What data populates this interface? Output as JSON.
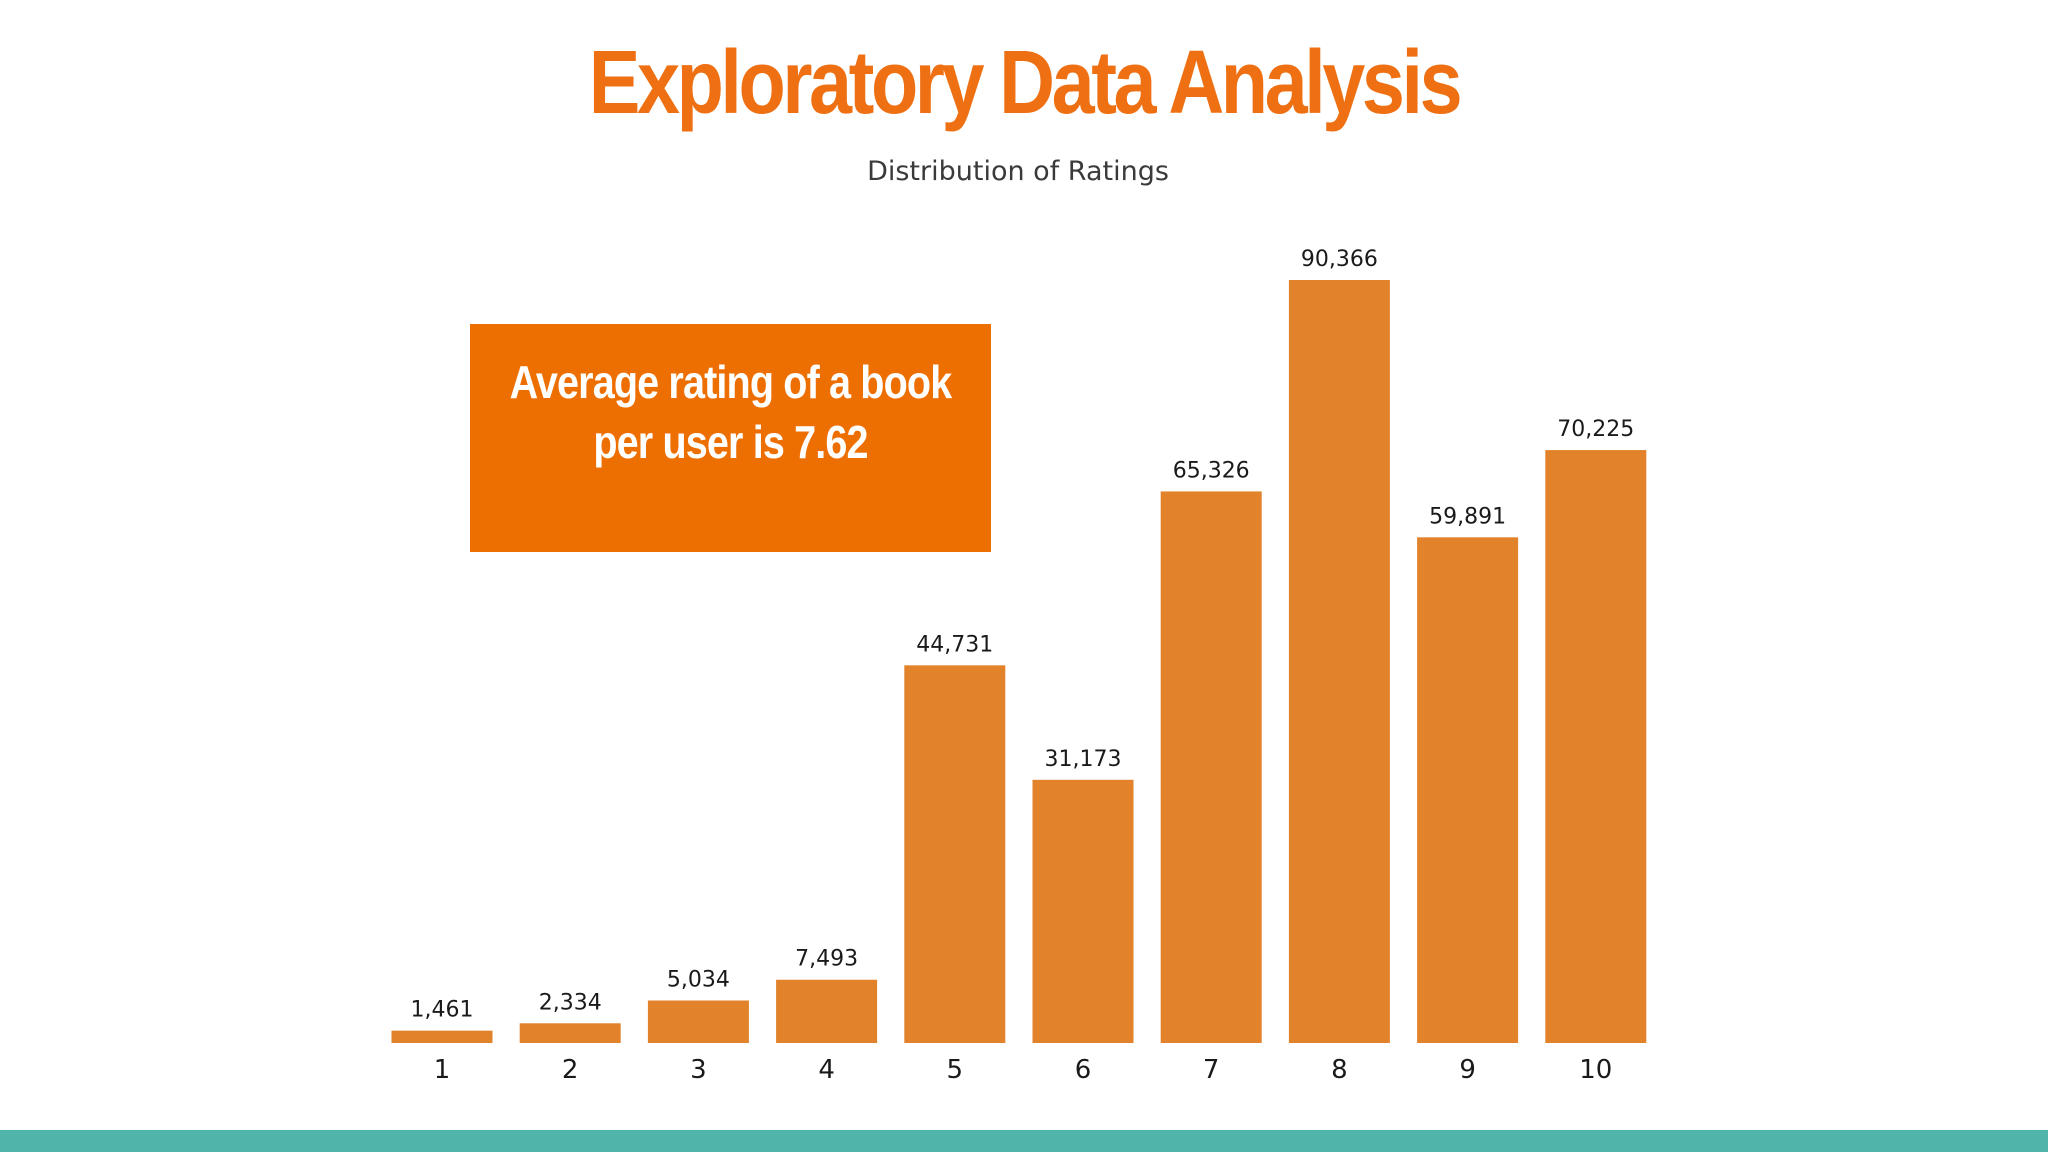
{
  "slide": {
    "title": "Exploratory Data Analysis",
    "callout": "Average rating of a book\nper user is 7.62"
  },
  "colors": {
    "title": "#ee7013",
    "bar": "#e2822b",
    "callout_bg": "#ee6f01",
    "band": "#4fb5aa",
    "text": "#1a1a1a"
  },
  "chart_data": {
    "type": "bar",
    "title": "Distribution of Ratings",
    "xlabel": "",
    "ylabel": "",
    "categories": [
      "1",
      "2",
      "3",
      "4",
      "5",
      "6",
      "7",
      "8",
      "9",
      "10"
    ],
    "values": [
      1461,
      2334,
      5034,
      7493,
      44731,
      31173,
      65326,
      90366,
      59891,
      70225
    ],
    "value_labels": [
      "1,461",
      "2,334",
      "5,034",
      "7,493",
      "44,731",
      "31,173",
      "65,326",
      "90,366",
      "59,891",
      "70,225"
    ],
    "ylim": [
      0,
      90366
    ],
    "grid": false,
    "legend": "none"
  }
}
